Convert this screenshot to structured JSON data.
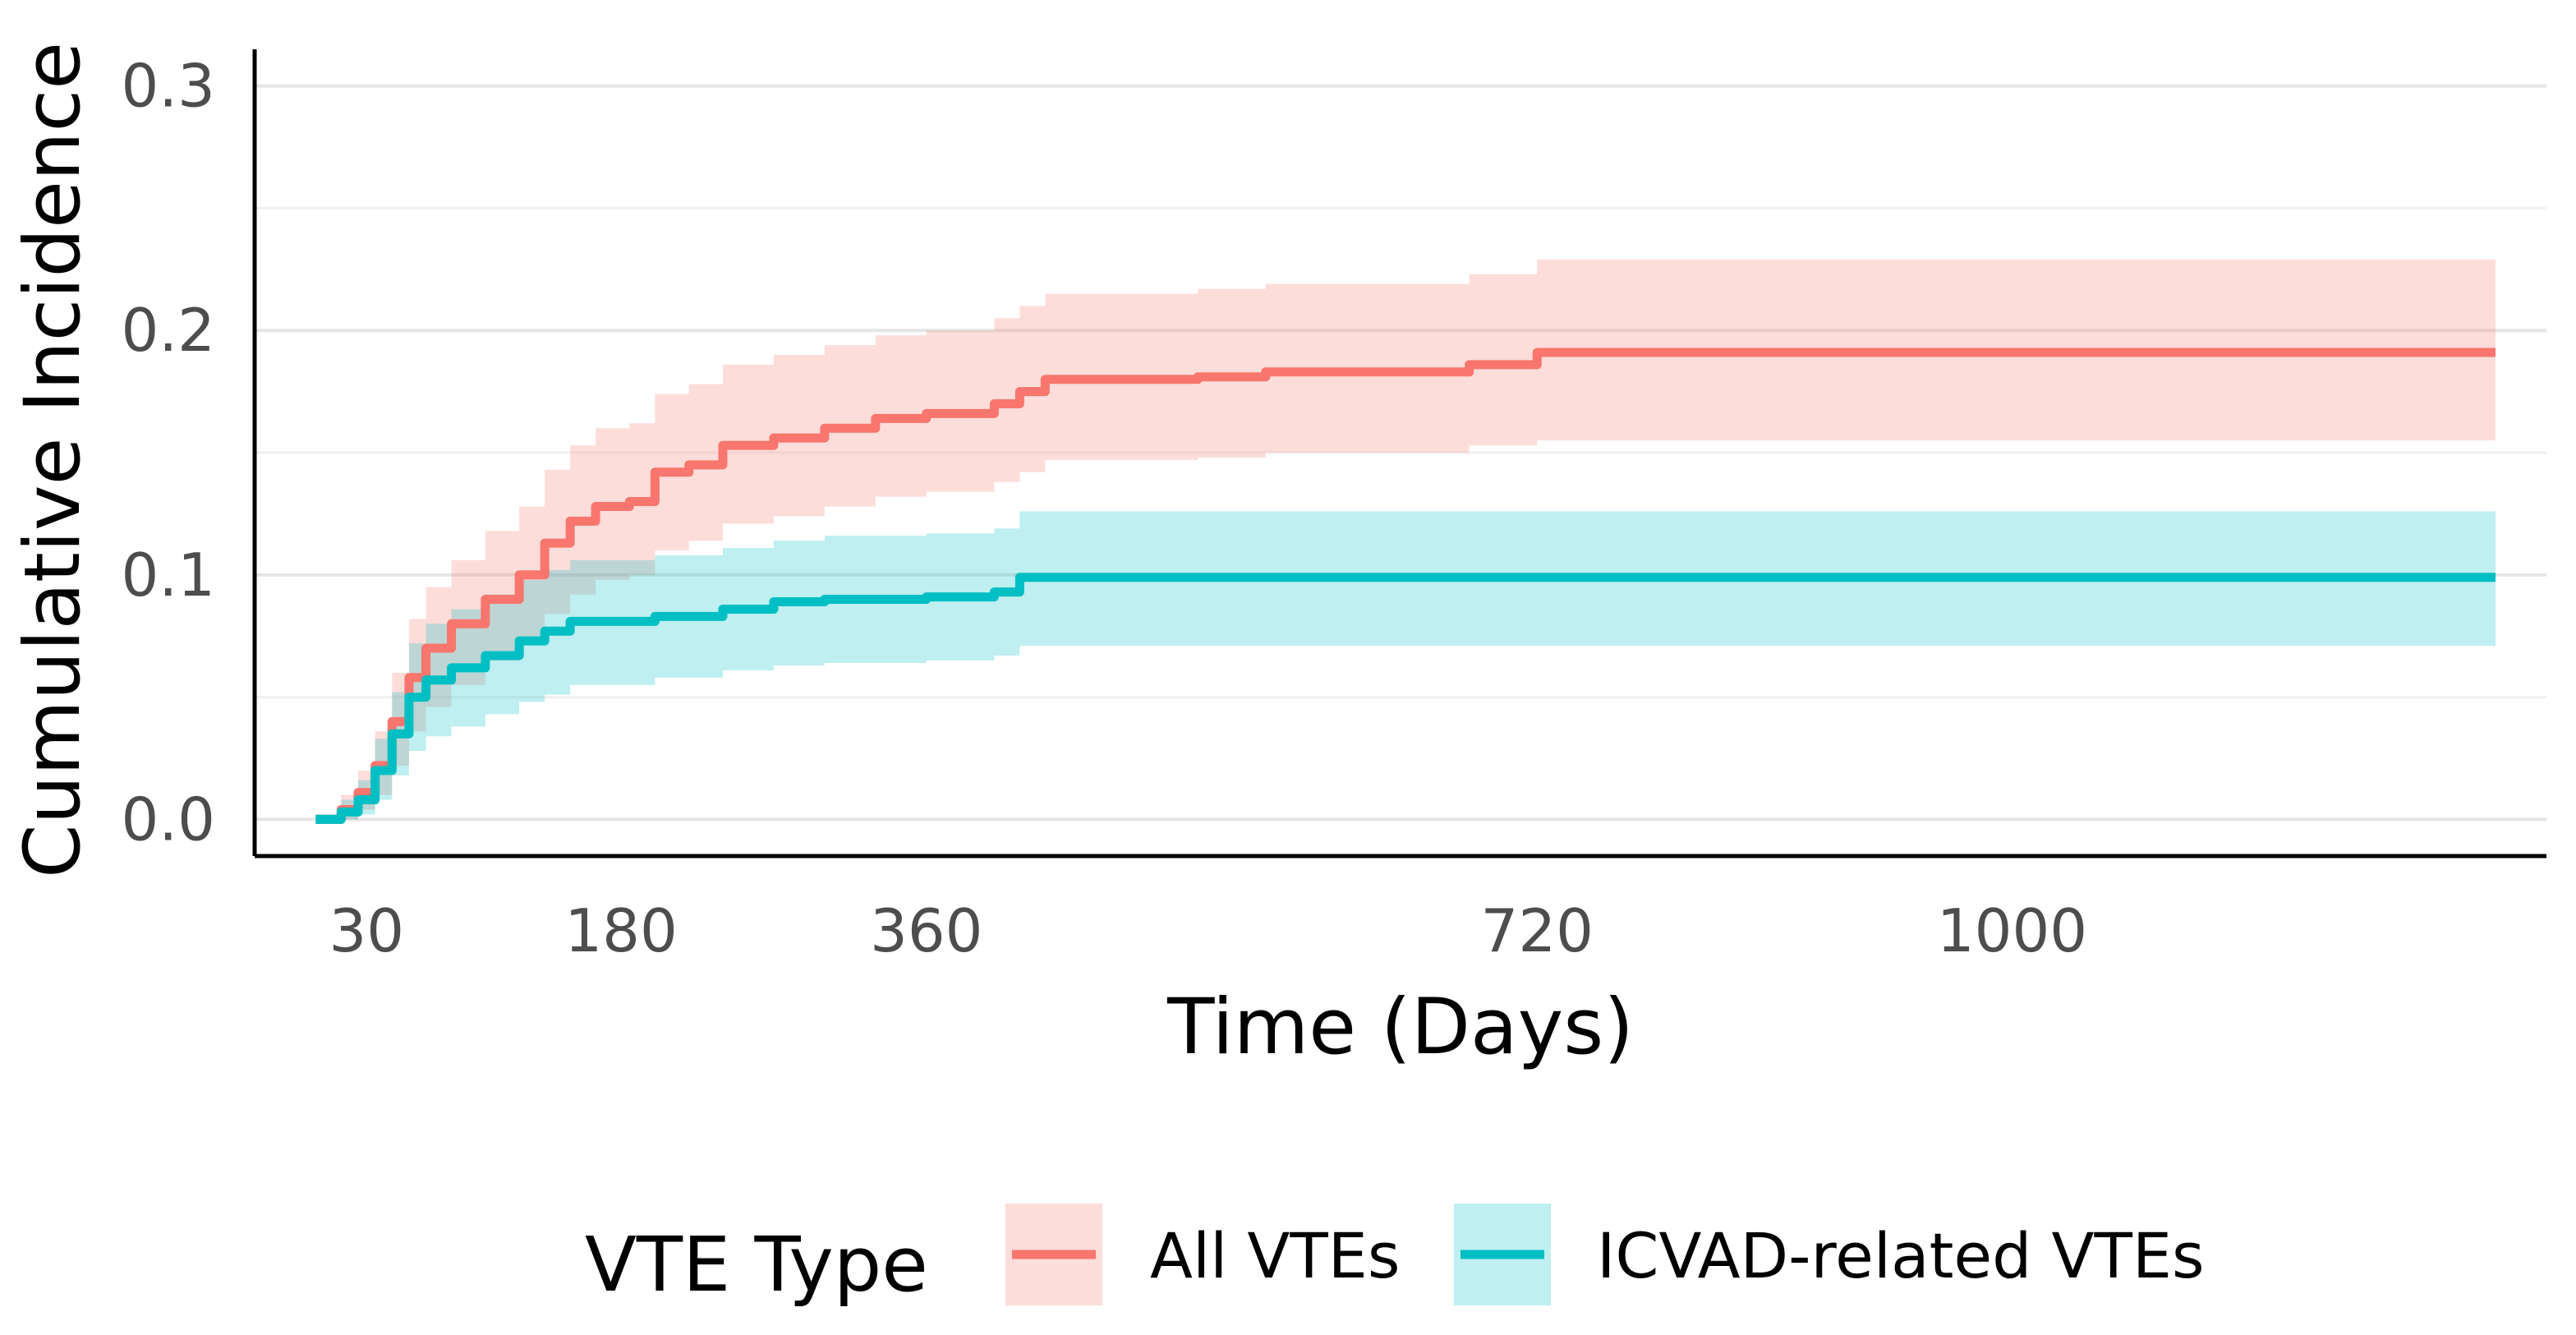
{
  "chart_data": {
    "type": "line",
    "title": "",
    "xlabel": "Time (Days)",
    "ylabel": "Cumulative Incidence",
    "xlim": [
      -36,
      1315
    ],
    "ylim": [
      -0.015,
      0.315
    ],
    "x_ticks": [
      30,
      180,
      360,
      720,
      1000
    ],
    "x_tick_labels": [
      "30",
      "180",
      "360",
      "720",
      "1000"
    ],
    "y_ticks": [
      0.0,
      0.1,
      0.2,
      0.3
    ],
    "y_tick_labels": [
      "0.0",
      "0.1",
      "0.2",
      "0.3"
    ],
    "grid": true,
    "legend": {
      "title": "VTE Type",
      "position": "bottom"
    },
    "series": [
      {
        "name": "All VTEs",
        "color": "#F8766D",
        "band_color": "#F8766D",
        "points": [
          [
            0,
            0
          ],
          [
            15,
            0.004
          ],
          [
            25,
            0.011
          ],
          [
            35,
            0.022
          ],
          [
            45,
            0.04
          ],
          [
            55,
            0.058
          ],
          [
            65,
            0.07
          ],
          [
            80,
            0.08
          ],
          [
            100,
            0.09
          ],
          [
            120,
            0.1
          ],
          [
            135,
            0.113
          ],
          [
            150,
            0.122
          ],
          [
            165,
            0.128
          ],
          [
            185,
            0.13
          ],
          [
            200,
            0.142
          ],
          [
            220,
            0.145
          ],
          [
            240,
            0.153
          ],
          [
            270,
            0.156
          ],
          [
            300,
            0.16
          ],
          [
            330,
            0.164
          ],
          [
            360,
            0.166
          ],
          [
            400,
            0.17
          ],
          [
            415,
            0.175
          ],
          [
            430,
            0.18
          ],
          [
            520,
            0.181
          ],
          [
            560,
            0.183
          ],
          [
            680,
            0.186
          ],
          [
            720,
            0.191
          ],
          [
            1285,
            0.191
          ]
        ],
        "lower": [
          [
            0,
            0
          ],
          [
            15,
            0.0
          ],
          [
            25,
            0.004
          ],
          [
            35,
            0.01
          ],
          [
            45,
            0.022
          ],
          [
            55,
            0.036
          ],
          [
            65,
            0.046
          ],
          [
            80,
            0.055
          ],
          [
            100,
            0.065
          ],
          [
            120,
            0.074
          ],
          [
            135,
            0.084
          ],
          [
            150,
            0.092
          ],
          [
            165,
            0.098
          ],
          [
            185,
            0.1
          ],
          [
            200,
            0.11
          ],
          [
            220,
            0.114
          ],
          [
            240,
            0.121
          ],
          [
            270,
            0.124
          ],
          [
            300,
            0.128
          ],
          [
            330,
            0.132
          ],
          [
            360,
            0.134
          ],
          [
            400,
            0.138
          ],
          [
            415,
            0.142
          ],
          [
            430,
            0.147
          ],
          [
            520,
            0.148
          ],
          [
            560,
            0.15
          ],
          [
            680,
            0.153
          ],
          [
            720,
            0.155
          ],
          [
            1285,
            0.155
          ]
        ],
        "upper": [
          [
            0,
            0.002
          ],
          [
            15,
            0.01
          ],
          [
            25,
            0.02
          ],
          [
            35,
            0.036
          ],
          [
            45,
            0.06
          ],
          [
            55,
            0.082
          ],
          [
            65,
            0.095
          ],
          [
            80,
            0.106
          ],
          [
            100,
            0.118
          ],
          [
            120,
            0.128
          ],
          [
            135,
            0.143
          ],
          [
            150,
            0.153
          ],
          [
            165,
            0.16
          ],
          [
            185,
            0.162
          ],
          [
            200,
            0.174
          ],
          [
            220,
            0.178
          ],
          [
            240,
            0.186
          ],
          [
            270,
            0.19
          ],
          [
            300,
            0.194
          ],
          [
            330,
            0.198
          ],
          [
            360,
            0.2
          ],
          [
            400,
            0.205
          ],
          [
            415,
            0.21
          ],
          [
            430,
            0.215
          ],
          [
            520,
            0.217
          ],
          [
            560,
            0.219
          ],
          [
            680,
            0.223
          ],
          [
            720,
            0.229
          ],
          [
            1285,
            0.229
          ]
        ]
      },
      {
        "name": "ICVAD-related VTEs",
        "color": "#00BFC4",
        "band_color": "#00BFC4",
        "points": [
          [
            0,
            0
          ],
          [
            15,
            0.003
          ],
          [
            25,
            0.008
          ],
          [
            35,
            0.02
          ],
          [
            45,
            0.035
          ],
          [
            55,
            0.05
          ],
          [
            65,
            0.057
          ],
          [
            80,
            0.062
          ],
          [
            100,
            0.067
          ],
          [
            120,
            0.073
          ],
          [
            135,
            0.077
          ],
          [
            150,
            0.081
          ],
          [
            200,
            0.083
          ],
          [
            240,
            0.086
          ],
          [
            270,
            0.089
          ],
          [
            300,
            0.09
          ],
          [
            360,
            0.091
          ],
          [
            400,
            0.093
          ],
          [
            415,
            0.099
          ],
          [
            1285,
            0.099
          ]
        ],
        "lower": [
          [
            0,
            0
          ],
          [
            15,
            0.0
          ],
          [
            25,
            0.002
          ],
          [
            35,
            0.008
          ],
          [
            45,
            0.018
          ],
          [
            55,
            0.028
          ],
          [
            65,
            0.034
          ],
          [
            80,
            0.038
          ],
          [
            100,
            0.043
          ],
          [
            120,
            0.048
          ],
          [
            135,
            0.051
          ],
          [
            150,
            0.055
          ],
          [
            200,
            0.058
          ],
          [
            240,
            0.061
          ],
          [
            270,
            0.063
          ],
          [
            300,
            0.064
          ],
          [
            360,
            0.065
          ],
          [
            400,
            0.067
          ],
          [
            415,
            0.071
          ],
          [
            1285,
            0.071
          ]
        ],
        "upper": [
          [
            0,
            0.002
          ],
          [
            15,
            0.008
          ],
          [
            25,
            0.016
          ],
          [
            35,
            0.033
          ],
          [
            45,
            0.052
          ],
          [
            55,
            0.072
          ],
          [
            65,
            0.08
          ],
          [
            80,
            0.086
          ],
          [
            100,
            0.092
          ],
          [
            120,
            0.098
          ],
          [
            135,
            0.102
          ],
          [
            150,
            0.106
          ],
          [
            200,
            0.108
          ],
          [
            240,
            0.111
          ],
          [
            270,
            0.114
          ],
          [
            300,
            0.116
          ],
          [
            360,
            0.117
          ],
          [
            400,
            0.119
          ],
          [
            415,
            0.126
          ],
          [
            1285,
            0.126
          ]
        ]
      }
    ]
  }
}
